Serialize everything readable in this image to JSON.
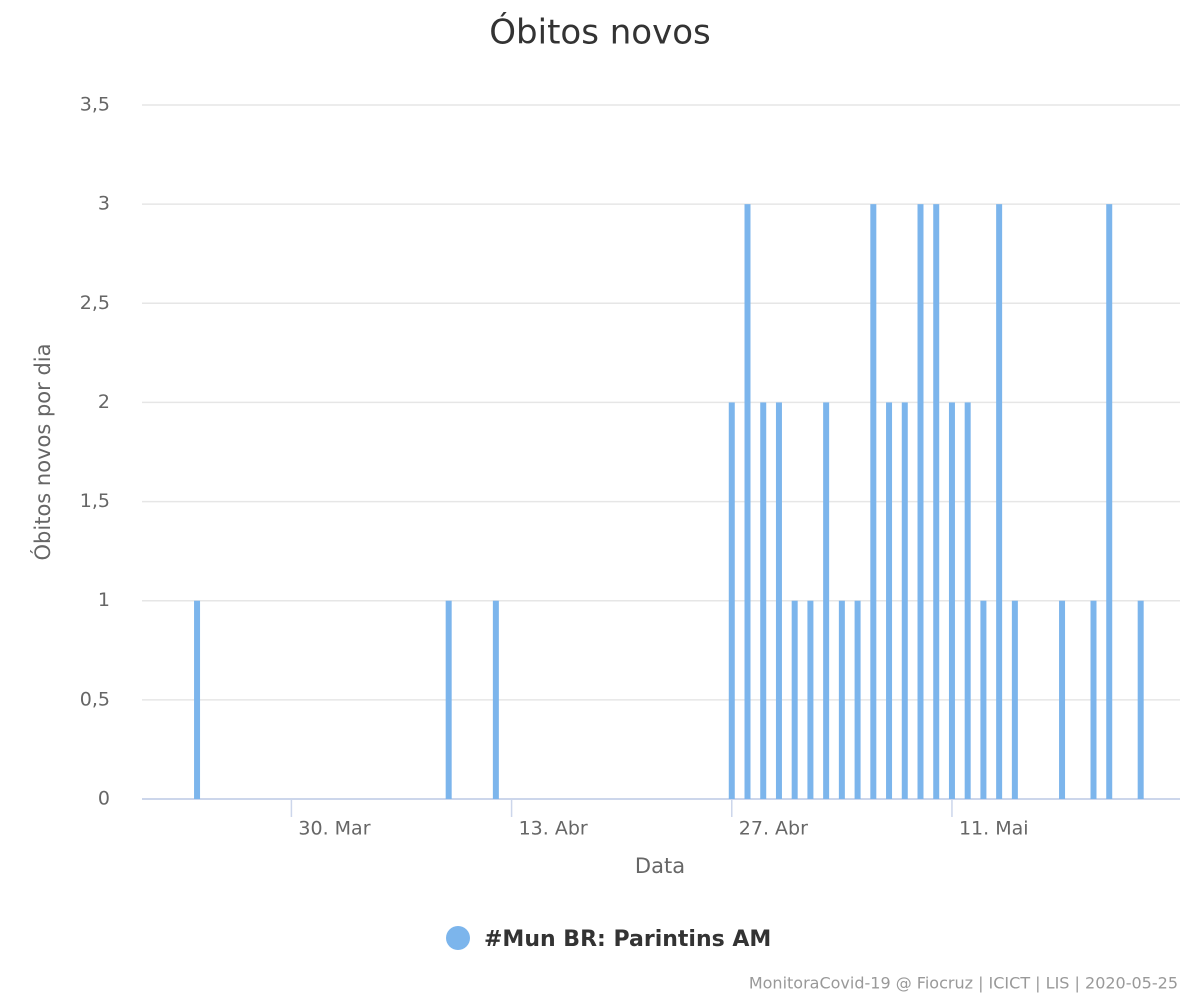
{
  "chart_data": {
    "type": "bar",
    "title": "Óbitos novos",
    "x_label": "Data",
    "y_label": "Óbitos novos por dia",
    "categories": [
      null,
      null,
      null,
      null,
      null,
      null,
      null,
      null,
      null,
      "30. Mar",
      null,
      null,
      null,
      null,
      null,
      null,
      null,
      null,
      null,
      null,
      null,
      null,
      null,
      "13. Abr",
      null,
      null,
      null,
      null,
      null,
      null,
      null,
      null,
      null,
      null,
      null,
      null,
      null,
      "27. Abr",
      null,
      null,
      null,
      null,
      null,
      null,
      null,
      null,
      null,
      null,
      null,
      null,
      null,
      "11. Mai",
      null,
      null,
      null,
      null,
      null,
      null,
      null,
      null,
      null,
      null,
      null,
      null,
      null,
      null
    ],
    "series": [
      {
        "name": "#Mun BR: Parintins AM",
        "color": "#7cb5ec",
        "values": [
          0,
          0,
          0,
          1,
          0,
          0,
          0,
          0,
          0,
          0,
          0,
          0,
          0,
          0,
          0,
          0,
          0,
          0,
          0,
          1,
          0,
          0,
          1,
          0,
          0,
          0,
          0,
          0,
          0,
          0,
          0,
          0,
          0,
          0,
          0,
          0,
          0,
          2,
          3,
          2,
          2,
          1,
          1,
          2,
          1,
          1,
          3,
          2,
          2,
          3,
          3,
          2,
          2,
          1,
          3,
          1,
          0,
          0,
          1,
          0,
          1,
          3,
          0,
          1,
          0,
          0
        ]
      }
    ],
    "ylim": [
      0,
      3.5
    ],
    "yticks": [
      0,
      {
        "value": 0.5,
        "label": "0,5"
      },
      1,
      {
        "value": 1.5,
        "label": "1,5"
      },
      2,
      {
        "value": 2.5,
        "label": "2,5"
      },
      3,
      {
        "value": 3.5,
        "label": "3,5"
      }
    ],
    "grid": true,
    "credits": "MonitoraCovid-19 @ Fiocruz | ICICT | LIS | 2020-05-25"
  }
}
